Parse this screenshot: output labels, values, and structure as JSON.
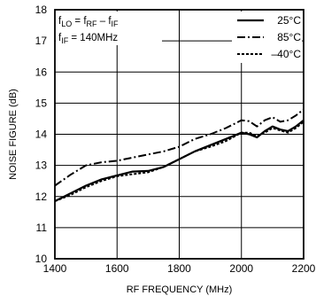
{
  "chart_data": {
    "type": "line",
    "title": "",
    "xlabel": "RF FREQUENCY (MHz)",
    "ylabel": "NOISE FIGURE (dB)",
    "xlim": [
      1400,
      2200
    ],
    "ylim": [
      10,
      18
    ],
    "x_ticks": [
      "1400",
      "1600",
      "1800",
      "2000",
      "2200"
    ],
    "y_ticks": [
      "10",
      "11",
      "12",
      "13",
      "14",
      "15",
      "16",
      "17",
      "18"
    ],
    "grid": true,
    "legend_position": "top-right",
    "annotations": {
      "line1": {
        "a": "f",
        "a_sub": "LO",
        "b": " = f",
        "b_sub": "RF",
        "c": " – f",
        "c_sub": "IF"
      },
      "line2": {
        "a": "f",
        "a_sub": "IF",
        "b": " = 140MHz"
      }
    },
    "series": [
      {
        "name": "25°C",
        "color": "#000000",
        "dash": "solid",
        "x": [
          1400,
          1450,
          1500,
          1550,
          1600,
          1650,
          1700,
          1750,
          1800,
          1850,
          1900,
          1950,
          2000,
          2025,
          2050,
          2075,
          2100,
          2125,
          2150,
          2175,
          2200
        ],
        "y": [
          11.85,
          12.1,
          12.35,
          12.55,
          12.68,
          12.8,
          12.82,
          12.95,
          13.2,
          13.45,
          13.65,
          13.85,
          14.05,
          14.0,
          13.9,
          14.1,
          14.25,
          14.15,
          14.1,
          14.25,
          14.45
        ]
      },
      {
        "name": "85°C",
        "color": "#000000",
        "dash": "dashdot",
        "x": [
          1400,
          1450,
          1500,
          1550,
          1600,
          1650,
          1700,
          1750,
          1800,
          1850,
          1900,
          1950,
          2000,
          2025,
          2050,
          2075,
          2100,
          2125,
          2150,
          2175,
          2200
        ],
        "y": [
          12.35,
          12.7,
          13.0,
          13.1,
          13.15,
          13.25,
          13.35,
          13.45,
          13.6,
          13.85,
          14.0,
          14.2,
          14.45,
          14.42,
          14.25,
          14.45,
          14.55,
          14.4,
          14.45,
          14.6,
          14.8
        ]
      },
      {
        "name": "–40°C",
        "color": "#000000",
        "dash": "dotted",
        "x": [
          1400,
          1450,
          1500,
          1550,
          1600,
          1650,
          1700,
          1750,
          1800,
          1850,
          1900,
          1950,
          2000,
          2025,
          2050,
          2075,
          2100,
          2125,
          2150,
          2175,
          2200
        ],
        "y": [
          11.85,
          12.05,
          12.3,
          12.5,
          12.65,
          12.72,
          12.78,
          12.95,
          13.2,
          13.45,
          13.6,
          13.78,
          14.05,
          14.05,
          13.95,
          14.05,
          14.2,
          14.12,
          14.05,
          14.2,
          14.4
        ]
      }
    ]
  }
}
